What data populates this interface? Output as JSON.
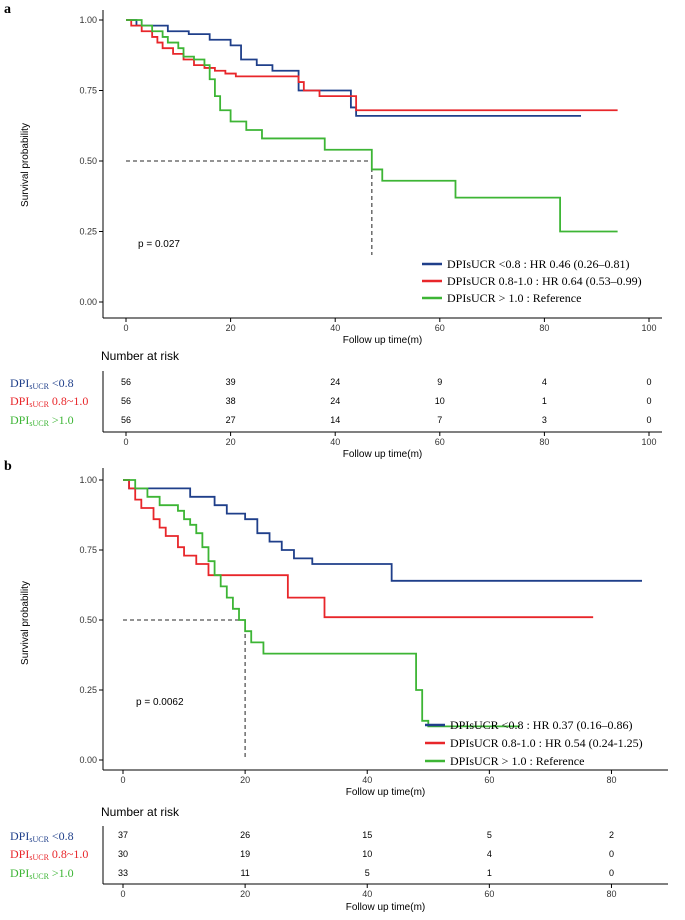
{
  "colors": {
    "blue": "#1f3f8a",
    "red": "#e8262a",
    "green": "#3db535",
    "median": "#555555",
    "axis": "#000000"
  },
  "chart_data": [
    {
      "panel": "a",
      "type": "line",
      "subtype": "kaplan-meier",
      "ylabel": "Survival probability",
      "xlabel": "Follow up time(m)",
      "xlim": [
        0,
        100
      ],
      "ylim": [
        0,
        1
      ],
      "xticks": [
        "0",
        "20",
        "40",
        "60",
        "80",
        "100"
      ],
      "yticks": [
        "0.00",
        "0.25",
        "0.50",
        "0.75",
        "1.00"
      ],
      "p_value": "p = 0.027",
      "median_line": {
        "y": 0.5,
        "x": 47
      },
      "series": [
        {
          "name": "DPIsUCR <0.8 : HR 0.46 (0.26–0.81)",
          "color": "blue",
          "x": [
            0,
            2,
            8,
            12,
            16,
            20,
            22,
            25,
            28,
            33,
            43,
            44,
            87
          ],
          "y": [
            1.0,
            0.98,
            0.96,
            0.95,
            0.93,
            0.91,
            0.86,
            0.84,
            0.82,
            0.75,
            0.69,
            0.66,
            0.66
          ]
        },
        {
          "name": "DPIsUCR 0.8-1.0 : HR 0.64 (0.53–0.99)",
          "color": "red",
          "x": [
            0,
            1,
            3,
            5,
            6,
            7,
            9,
            11,
            13,
            15,
            17,
            19,
            21,
            33,
            34,
            37,
            44,
            94
          ],
          "y": [
            1.0,
            0.98,
            0.96,
            0.94,
            0.92,
            0.9,
            0.88,
            0.86,
            0.84,
            0.83,
            0.82,
            0.81,
            0.8,
            0.78,
            0.75,
            0.73,
            0.68,
            0.68
          ]
        },
        {
          "name": "DPIsUCR > 1.0 : Reference",
          "color": "green",
          "x": [
            0,
            3,
            5,
            7,
            8,
            10,
            11,
            13,
            15,
            16,
            17,
            18,
            20,
            23,
            26,
            38,
            47,
            49,
            63,
            83,
            94
          ],
          "y": [
            1.0,
            0.98,
            0.96,
            0.94,
            0.92,
            0.9,
            0.87,
            0.86,
            0.84,
            0.79,
            0.73,
            0.68,
            0.64,
            0.61,
            0.58,
            0.54,
            0.47,
            0.43,
            0.37,
            0.25,
            0.25
          ]
        }
      ],
      "risk_table": {
        "title": "Number at risk",
        "xticks": [
          "0",
          "20",
          "40",
          "60",
          "80",
          "100"
        ],
        "x_title": "Follow up time(m)",
        "rows": [
          {
            "prefix": "DPI",
            "sub": "sUCR",
            "suffix": " <0.8",
            "color": "blue",
            "values": [
              "56",
              "39",
              "24",
              "9",
              "4",
              "0"
            ]
          },
          {
            "prefix": "DPI",
            "sub": "sUCR",
            "suffix": " 0.8~1.0",
            "color": "red",
            "values": [
              "56",
              "38",
              "24",
              "10",
              "1",
              "0"
            ]
          },
          {
            "prefix": "DPI",
            "sub": "sUCR",
            "suffix": " >1.0",
            "color": "green",
            "values": [
              "56",
              "27",
              "14",
              "7",
              "3",
              "0"
            ]
          }
        ]
      }
    },
    {
      "panel": "b",
      "type": "line",
      "subtype": "kaplan-meier",
      "ylabel": "Survival probability",
      "xlabel": "Follow up time(m)",
      "xlim": [
        0,
        85
      ],
      "ylim": [
        0,
        1
      ],
      "xticks": [
        "0",
        "20",
        "40",
        "60",
        "80"
      ],
      "yticks": [
        "0.00",
        "0.25",
        "0.50",
        "0.75",
        "1.00"
      ],
      "p_value": "p = 0.0062",
      "median_line": {
        "y": 0.5,
        "x": 20
      },
      "series": [
        {
          "name": "DPIsUCR <0.8 : HR 0.37 (0.16–0.86)",
          "color": "blue",
          "x": [
            0,
            1,
            11,
            15,
            17,
            20,
            22,
            24,
            26,
            28,
            31,
            34,
            44,
            85
          ],
          "y": [
            1.0,
            0.97,
            0.94,
            0.91,
            0.88,
            0.86,
            0.81,
            0.78,
            0.75,
            0.72,
            0.7,
            0.7,
            0.64,
            0.64
          ]
        },
        {
          "name": "DPIsUCR 0.8-1.0 : HR 0.54 (0.24-1.25)",
          "color": "red",
          "x": [
            0,
            1,
            2,
            3,
            5,
            6,
            7,
            9,
            10,
            12,
            14,
            17,
            27,
            33,
            77
          ],
          "y": [
            1.0,
            0.97,
            0.93,
            0.9,
            0.86,
            0.83,
            0.8,
            0.76,
            0.73,
            0.7,
            0.66,
            0.66,
            0.58,
            0.51,
            0.51
          ]
        },
        {
          "name": "DPIsUCR > 1.0 : Reference",
          "color": "green",
          "x": [
            0,
            2,
            4,
            6,
            9,
            10,
            11,
            12,
            13,
            14,
            15,
            16,
            17,
            18,
            19,
            20,
            21,
            23,
            48,
            49,
            50,
            65
          ],
          "y": [
            1.0,
            0.97,
            0.94,
            0.91,
            0.89,
            0.86,
            0.84,
            0.81,
            0.76,
            0.71,
            0.66,
            0.62,
            0.58,
            0.54,
            0.5,
            0.46,
            0.42,
            0.38,
            0.25,
            0.14,
            0.12,
            0.12
          ]
        }
      ],
      "risk_table": {
        "title": "Number at risk",
        "xticks": [
          "0",
          "20",
          "40",
          "60",
          "80"
        ],
        "x_title": "Follow up time(m)",
        "rows": [
          {
            "prefix": "DPI",
            "sub": "sUCR",
            "suffix": " <0.8",
            "color": "blue",
            "values": [
              "37",
              "26",
              "15",
              "5",
              "2"
            ]
          },
          {
            "prefix": "DPI",
            "sub": "sUCR",
            "suffix": " 0.8~1.0",
            "color": "red",
            "values": [
              "30",
              "19",
              "10",
              "4",
              "0"
            ]
          },
          {
            "prefix": "DPI",
            "sub": "sUCR",
            "suffix": " >1.0",
            "color": "green",
            "values": [
              "33",
              "11",
              "5",
              "1",
              "0"
            ]
          }
        ]
      }
    }
  ]
}
